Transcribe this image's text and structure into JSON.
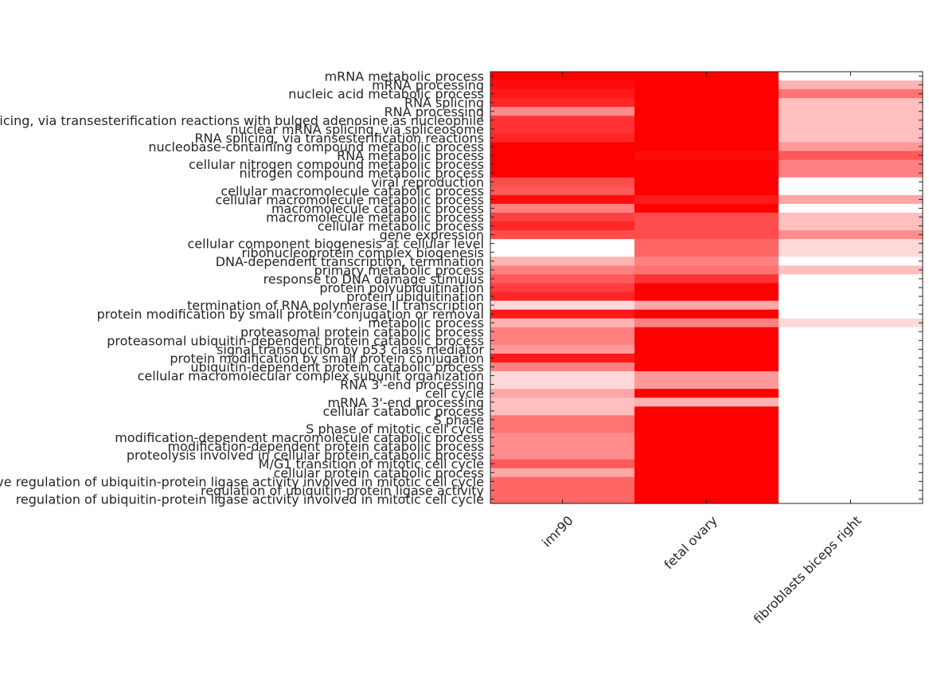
{
  "chart_data": {
    "type": "heatmap",
    "title": "",
    "xlabel": "",
    "ylabel": "",
    "colormap": [
      "#ffffff",
      "#ff0000"
    ],
    "grid": false,
    "columns": [
      "imr90",
      "fetal ovary",
      "fibroblasts biceps right"
    ],
    "rows": [
      "mRNA metabolic process",
      "mRNA processing",
      "nucleic acid metabolic process",
      "RNA splicing",
      "RNA processing",
      "RNA splicing, via transesterification reactions with bulged adenosine as nucleophile",
      "nuclear mRNA splicing, via spliceosome",
      "RNA splicing, via transesterification reactions",
      "nucleobase-containing compound metabolic process",
      "RNA metabolic process",
      "cellular nitrogen compound metabolic process",
      "nitrogen compound metabolic process",
      "viral reproduction",
      "cellular macromolecule catabolic process",
      "cellular macromolecule metabolic process",
      "macromolecule catabolic process",
      "macromolecule metabolic process",
      "cellular metabolic process",
      "gene expression",
      "cellular component biogenesis at cellular level",
      "ribonucleoprotein complex biogenesis",
      "DNA-dependent transcription, termination",
      "primary metabolic process",
      "response to DNA damage stimulus",
      "protein polyubiquitination",
      "protein ubiquitination",
      "termination of RNA polymerase II transcription",
      "protein modification by small protein conjugation or removal",
      "metabolic process",
      "proteasomal protein catabolic process",
      "proteasomal ubiquitin-dependent protein catabolic process",
      "signal transduction by p53 class mediator",
      "protein modification by small protein conjugation",
      "ubiquitin-dependent protein catabolic process",
      "cellular macromolecular complex subunit organization",
      "RNA 3'-end processing",
      "cell cycle",
      "mRNA 3'-end processing",
      "cellular catabolic process",
      "S phase",
      "S phase of mitotic cell cycle",
      "modification-dependent macromolecule catabolic process",
      "modification-dependent protein catabolic process",
      "proteolysis involved in cellular protein catabolic process",
      "M/G1 transition of mitotic cell cycle",
      "cellular protein catabolic process",
      "positive regulation of ubiquitin-protein ligase activity involved in mitotic cell cycle",
      "regulation of ubiquitin-protein ligase activity",
      "regulation of ubiquitin-protein ligase activity involved in mitotic cell cycle"
    ],
    "values": [
      [
        1.0,
        1.0,
        0.0
      ],
      [
        0.95,
        1.0,
        0.3
      ],
      [
        0.9,
        1.0,
        0.55
      ],
      [
        0.85,
        1.0,
        0.25
      ],
      [
        0.45,
        1.0,
        0.25
      ],
      [
        0.8,
        1.0,
        0.25
      ],
      [
        0.8,
        1.0,
        0.25
      ],
      [
        0.85,
        1.0,
        0.25
      ],
      [
        1.0,
        1.0,
        0.4
      ],
      [
        1.0,
        0.95,
        0.65
      ],
      [
        1.0,
        1.0,
        0.5
      ],
      [
        1.0,
        1.0,
        0.5
      ],
      [
        0.7,
        1.0,
        0.0
      ],
      [
        0.65,
        1.0,
        0.0
      ],
      [
        0.95,
        0.9,
        0.35
      ],
      [
        0.5,
        1.0,
        0.0
      ],
      [
        0.75,
        0.7,
        0.25
      ],
      [
        0.85,
        0.7,
        0.25
      ],
      [
        0.7,
        0.7,
        0.45
      ],
      [
        0.0,
        0.6,
        0.15
      ],
      [
        0.0,
        0.6,
        0.15
      ],
      [
        0.3,
        0.5,
        0.0
      ],
      [
        0.5,
        0.55,
        0.25
      ],
      [
        0.65,
        0.8,
        0.0
      ],
      [
        0.75,
        1.0,
        0.0
      ],
      [
        0.85,
        1.0,
        0.0
      ],
      [
        0.15,
        0.35,
        0.0
      ],
      [
        0.9,
        1.0,
        0.0
      ],
      [
        0.3,
        0.5,
        0.15
      ],
      [
        0.5,
        1.0,
        0.0
      ],
      [
        0.5,
        1.0,
        0.0
      ],
      [
        0.4,
        1.0,
        0.0
      ],
      [
        0.9,
        1.0,
        0.0
      ],
      [
        0.5,
        1.0,
        0.0
      ],
      [
        0.15,
        0.4,
        0.0
      ],
      [
        0.15,
        0.4,
        0.0
      ],
      [
        0.35,
        1.0,
        0.0
      ],
      [
        0.25,
        0.3,
        0.0
      ],
      [
        0.25,
        1.0,
        0.0
      ],
      [
        0.55,
        1.0,
        0.0
      ],
      [
        0.55,
        1.0,
        0.0
      ],
      [
        0.45,
        1.0,
        0.0
      ],
      [
        0.45,
        1.0,
        0.0
      ],
      [
        0.45,
        1.0,
        0.0
      ],
      [
        0.65,
        1.0,
        0.0
      ],
      [
        0.35,
        1.0,
        0.0
      ],
      [
        0.6,
        1.0,
        0.0
      ],
      [
        0.6,
        1.0,
        0.0
      ],
      [
        0.6,
        1.0,
        0.0
      ]
    ]
  }
}
